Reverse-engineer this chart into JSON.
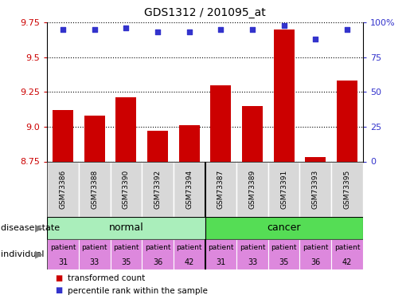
{
  "title": "GDS1312 / 201095_at",
  "samples": [
    "GSM73386",
    "GSM73388",
    "GSM73390",
    "GSM73392",
    "GSM73394",
    "GSM73387",
    "GSM73389",
    "GSM73391",
    "GSM73393",
    "GSM73395"
  ],
  "transformed_count": [
    9.12,
    9.08,
    9.21,
    8.97,
    9.01,
    9.3,
    9.15,
    9.7,
    8.78,
    9.33
  ],
  "percentile_rank": [
    95,
    95,
    96,
    93,
    93,
    95,
    95,
    98,
    88,
    95
  ],
  "bar_color": "#cc0000",
  "dot_color": "#3333cc",
  "normal_color": "#aaeebb",
  "cancer_color": "#55dd55",
  "individual_color": "#dd88dd",
  "sample_box_color": "#d8d8d8",
  "ylim_left": [
    8.75,
    9.75
  ],
  "yticks_left": [
    8.75,
    9.0,
    9.25,
    9.5,
    9.75
  ],
  "yticks_right": [
    0,
    25,
    50,
    75,
    100
  ],
  "ylim_right": [
    0,
    100
  ],
  "bar_width": 0.65,
  "legend_red_label": "transformed count",
  "legend_blue_label": "percentile rank within the sample",
  "disease_state_label": "disease state",
  "individual_label": "individual",
  "individuals": [
    "patient\n31",
    "patient\n33",
    "patient\n35",
    "patient\n36",
    "patient\n42",
    "patient\n31",
    "patient\n33",
    "patient\n35",
    "patient\n36",
    "patient\n42"
  ]
}
